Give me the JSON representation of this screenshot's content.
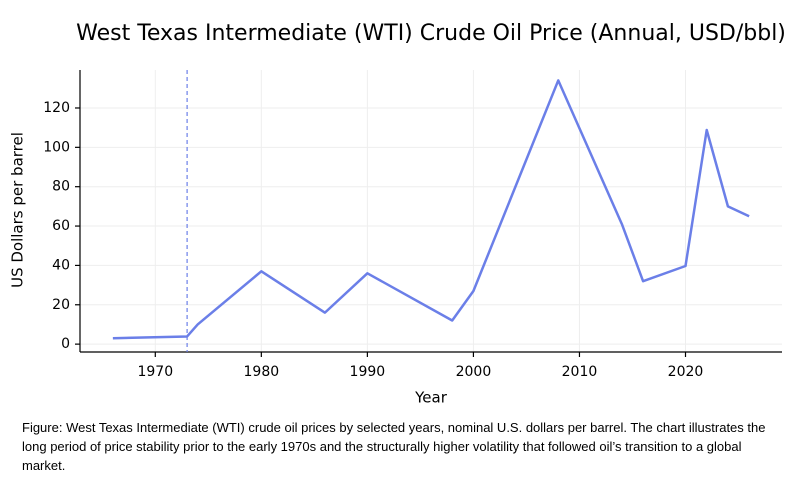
{
  "chart_data": {
    "type": "line",
    "title": "West Texas Intermediate (WTI) Crude Oil Price (Annual, USD/bbl)",
    "x_label": "Year",
    "y_label": "US Dollars per barrel",
    "x": [
      1966,
      1973,
      1974,
      1980,
      1986,
      1990,
      1998,
      2000,
      2008,
      2014,
      2016,
      2020,
      2022,
      2024,
      2026
    ],
    "series": [
      {
        "name": "WTI",
        "color": "#6b7fe8",
        "values": [
          3,
          3.9,
          10,
          37,
          16,
          36,
          12,
          27,
          134,
          61,
          32,
          39.7,
          108.8,
          70,
          65
        ]
      }
    ],
    "xlim": [
      1962.9,
      2029.1
    ],
    "xticks": [
      1970,
      1980,
      1990,
      2000,
      2010,
      2020
    ],
    "ylim": [
      -4,
      139.3
    ],
    "yticks": [
      0,
      20,
      40,
      60,
      80,
      100,
      120
    ],
    "grid": true,
    "vline_x": 1973,
    "vline_color": "#6b7fe8"
  },
  "caption": "Figure: West Texas Intermediate (WTI) crude oil prices by selected years, nominal U.S. dollars per barrel. The chart illustrates the long period of price stability prior to the early 1970s and the structurally higher volatility that followed oil’s transition to a global market."
}
